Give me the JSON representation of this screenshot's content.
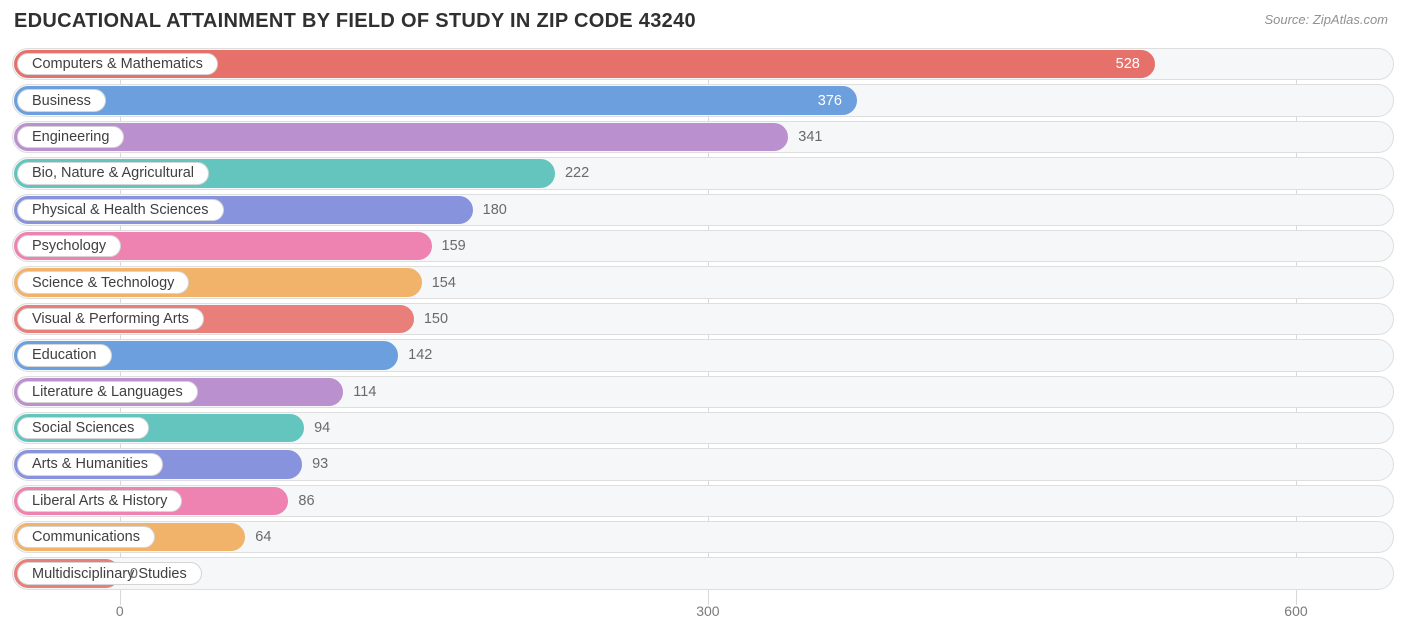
{
  "title": "EDUCATIONAL ATTAINMENT BY FIELD OF STUDY IN ZIP CODE 43240",
  "source": "Source: ZipAtlas.com",
  "chart": {
    "type": "bar-horizontal",
    "background_color": "#ffffff",
    "track_bg": "#f6f7f8",
    "track_border": "#dedede",
    "grid_color": "#d8d8d8",
    "value_outside_color": "#6a6a6a",
    "value_inside_color": "#ffffff",
    "label_fontsize": 14.5,
    "title_fontsize": 20,
    "title_color": "#303030",
    "x_min": -55,
    "x_max": 650,
    "x_ticks": [
      0,
      300,
      600
    ],
    "bars": [
      {
        "label": "Computers & Mathematics",
        "value": 528,
        "color": "#e5716a",
        "value_inside": true
      },
      {
        "label": "Business",
        "value": 376,
        "color": "#6c9fdd",
        "value_inside": true
      },
      {
        "label": "Engineering",
        "value": 341,
        "color": "#bb90cf",
        "value_inside": false
      },
      {
        "label": "Bio, Nature & Agricultural",
        "value": 222,
        "color": "#63c5bd",
        "value_inside": false
      },
      {
        "label": "Physical & Health Sciences",
        "value": 180,
        "color": "#8893de",
        "value_inside": false
      },
      {
        "label": "Psychology",
        "value": 159,
        "color": "#ee82b0",
        "value_inside": false
      },
      {
        "label": "Science & Technology",
        "value": 154,
        "color": "#f1b26a",
        "value_inside": false
      },
      {
        "label": "Visual & Performing Arts",
        "value": 150,
        "color": "#e87f7a",
        "value_inside": false
      },
      {
        "label": "Education",
        "value": 142,
        "color": "#6c9fdd",
        "value_inside": false
      },
      {
        "label": "Literature & Languages",
        "value": 114,
        "color": "#bb90cf",
        "value_inside": false
      },
      {
        "label": "Social Sciences",
        "value": 94,
        "color": "#63c5bd",
        "value_inside": false
      },
      {
        "label": "Arts & Humanities",
        "value": 93,
        "color": "#8893de",
        "value_inside": false
      },
      {
        "label": "Liberal Arts & History",
        "value": 86,
        "color": "#ee82b0",
        "value_inside": false
      },
      {
        "label": "Communications",
        "value": 64,
        "color": "#f1b26a",
        "value_inside": false
      },
      {
        "label": "Multidisciplinary Studies",
        "value": 0,
        "color": "#e87f7a",
        "value_inside": false
      }
    ]
  }
}
